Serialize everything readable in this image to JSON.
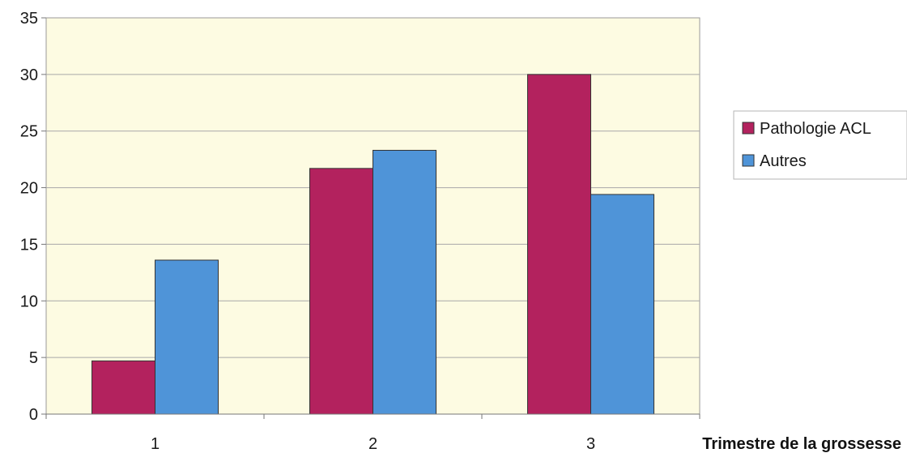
{
  "chart_data": {
    "type": "bar",
    "title": "",
    "xlabel": "Trimestre de la grossesse",
    "ylabel": "",
    "categories": [
      "1",
      "2",
      "3"
    ],
    "series": [
      {
        "name": "Pathologie ACL",
        "values": [
          4.7,
          21.7,
          30.0
        ],
        "color": "#b3225e"
      },
      {
        "name": "Autres",
        "values": [
          13.6,
          23.3,
          19.4
        ],
        "color": "#4f94d8"
      }
    ],
    "ylim": [
      0,
      35
    ],
    "yticks": [
      0,
      5,
      10,
      15,
      20,
      25,
      30,
      35
    ],
    "grid": true,
    "legend_position": "right",
    "plot_background": "#fdfbe2"
  }
}
